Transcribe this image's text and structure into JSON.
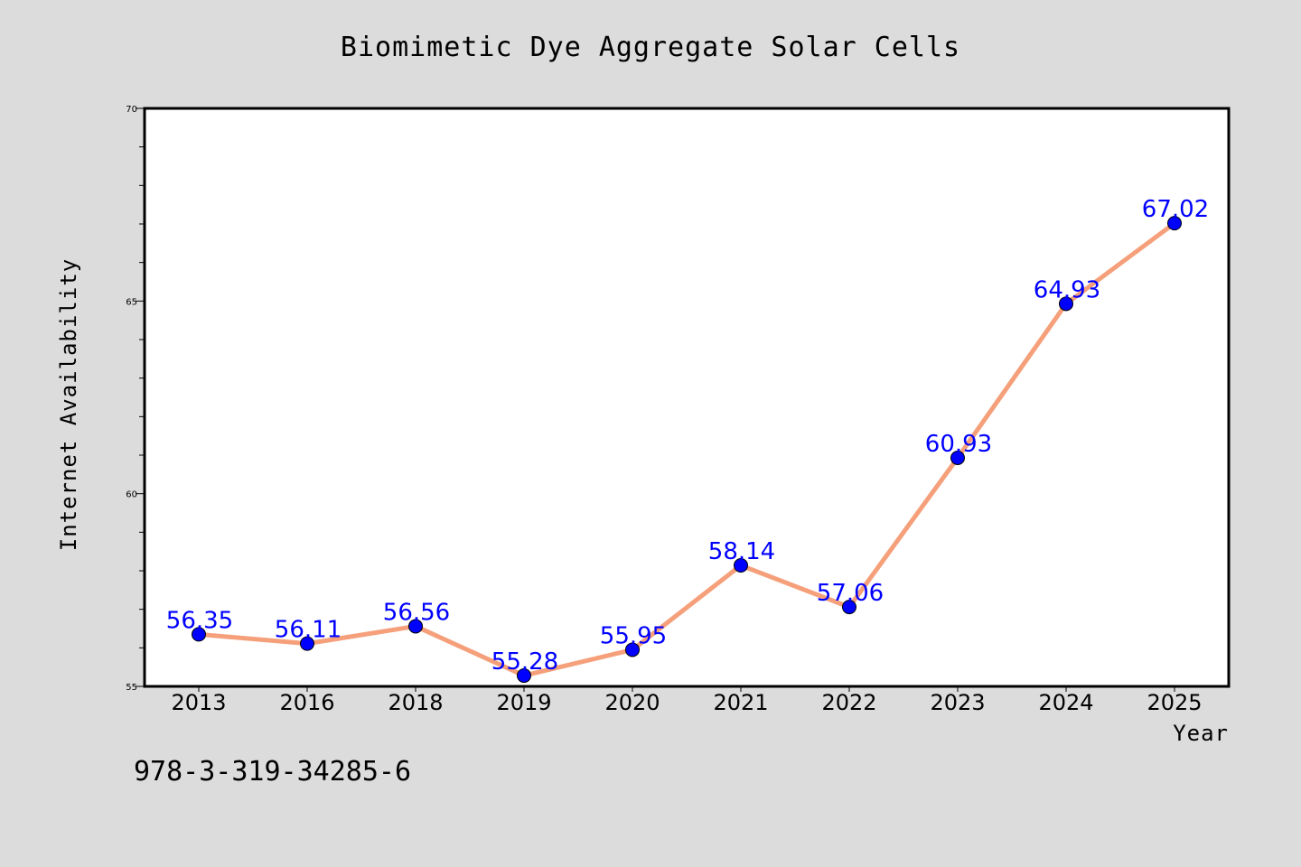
{
  "chart_data": {
    "type": "line",
    "title": "Biomimetic Dye Aggregate Solar Cells",
    "xlabel": "Year",
    "ylabel": "Internet Availability",
    "categories": [
      "2013",
      "2016",
      "2018",
      "2019",
      "2020",
      "2021",
      "2022",
      "2023",
      "2024",
      "2025"
    ],
    "values": [
      56.35,
      56.11,
      56.56,
      55.28,
      55.95,
      58.14,
      57.06,
      60.93,
      64.93,
      67.02
    ],
    "data_labels": [
      "56.35",
      "56.11",
      "56.56",
      "55.28",
      "55.95",
      "58.14",
      "57.06",
      "60.93",
      "64.93",
      "67.02"
    ],
    "ylim": [
      55,
      70
    ],
    "y_ticks": [
      55,
      60,
      65,
      70
    ],
    "y_tick_labels": [
      "55",
      "60",
      "65",
      "70"
    ],
    "grid": false,
    "legend": "none",
    "colors": {
      "line": "#f5a07a",
      "marker": "#0000ff",
      "marker_edge": "#000000",
      "data_label": "#0000ff",
      "plot_background": "#ffffff",
      "figure_background": "#dcdcdc"
    }
  },
  "footnote": "978-3-319-34285-6"
}
